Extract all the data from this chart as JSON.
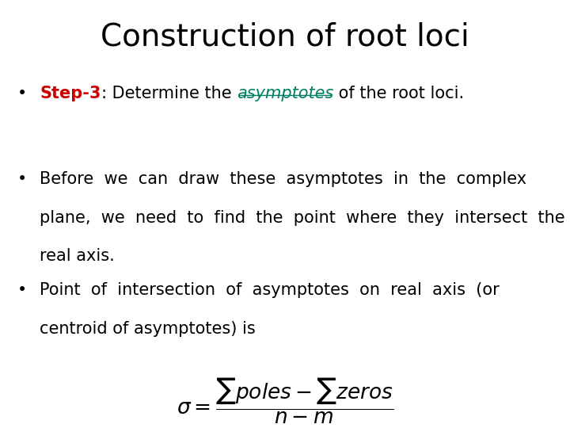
{
  "title": "Construction of root loci",
  "title_fontsize": 28,
  "title_color": "#000000",
  "background_color": "#ffffff",
  "bullet1_prefix": "Step-3",
  "bullet1_prefix_color": "#cc0000",
  "bullet1_middle": ": Determine the ",
  "bullet1_keyword": "asymptotes",
  "bullet1_keyword_color": "#008060",
  "bullet1_suffix": " of the root loci.",
  "bullet2_line1": "Before  we  can  draw  these  asymptotes  in  the  complex",
  "bullet2_line2": "plane,  we  need  to  find  the  point  where  they  intersect  the",
  "bullet2_line3": "real axis.",
  "bullet3_line1": "Point  of  intersection  of  asymptotes  on  real  axis  (or",
  "bullet3_line2": "centroid of asymptotes) is",
  "text_color": "#000000",
  "text_fontsize": 15,
  "font_family": "DejaVu Sans"
}
